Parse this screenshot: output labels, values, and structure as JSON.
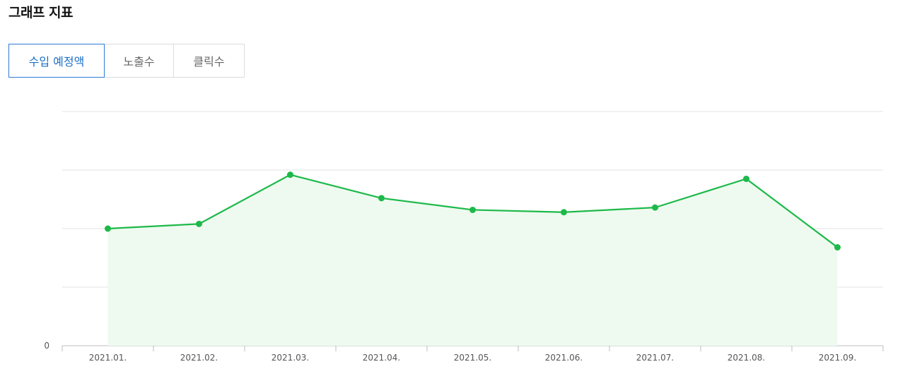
{
  "header": {
    "title": "그래프 지표"
  },
  "tabs": [
    {
      "label": "수입 예정액",
      "active": true
    },
    {
      "label": "노출수",
      "active": false
    },
    {
      "label": "클릭수",
      "active": false
    }
  ],
  "colors": {
    "accent_blue": "#2b7cd3",
    "line_green": "#1db94a",
    "area_green": "#eefaef",
    "grid": "#e3e3e3"
  },
  "chart_data": {
    "type": "area",
    "categories": [
      "2021.01.",
      "2021.02.",
      "2021.03.",
      "2021.04.",
      "2021.05.",
      "2021.06.",
      "2021.07.",
      "2021.08.",
      "2021.09."
    ],
    "series": [
      {
        "values": [
          2.0,
          2.08,
          2.92,
          2.52,
          2.32,
          2.28,
          2.36,
          2.85,
          1.68
        ]
      }
    ],
    "ylim": [
      0,
      4
    ],
    "y_tick_values": [
      0,
      1,
      2,
      3,
      4
    ],
    "y_tick_labels": [
      "0",
      "",
      "",
      "",
      ""
    ],
    "grid": true,
    "legend": "none",
    "title": "",
    "xlabel": "",
    "ylabel": ""
  }
}
